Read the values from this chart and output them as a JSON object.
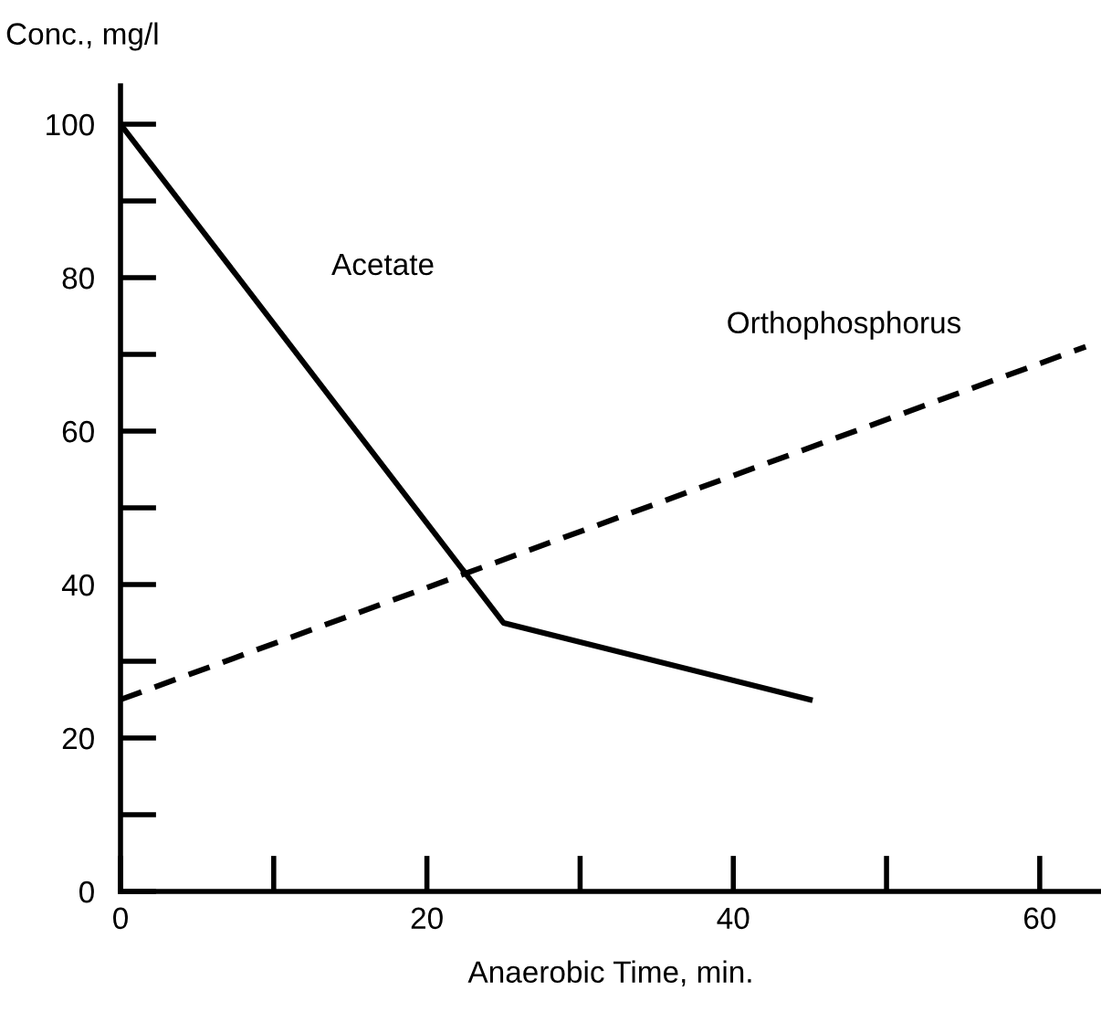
{
  "chart_data": {
    "type": "line",
    "ylabel": "Conc., mg/l",
    "xlabel": "Anaerobic Time, min.",
    "xlim": [
      0,
      64
    ],
    "ylim": [
      0,
      105
    ],
    "xticks": [
      0,
      20,
      40,
      60
    ],
    "yticks": [
      0,
      20,
      40,
      60,
      80,
      100
    ],
    "grid": false,
    "legend": false,
    "marker": "none",
    "series": [
      {
        "name": "Acetate",
        "color": "#000000",
        "line_style": "solid",
        "x": [
          0,
          25,
          45
        ],
        "values": [
          100,
          35,
          25
        ]
      },
      {
        "name": "Orthophosphorus",
        "color": "#000000",
        "line_style": "dashed",
        "x": [
          0,
          63
        ],
        "values": [
          25,
          71
        ]
      }
    ]
  }
}
